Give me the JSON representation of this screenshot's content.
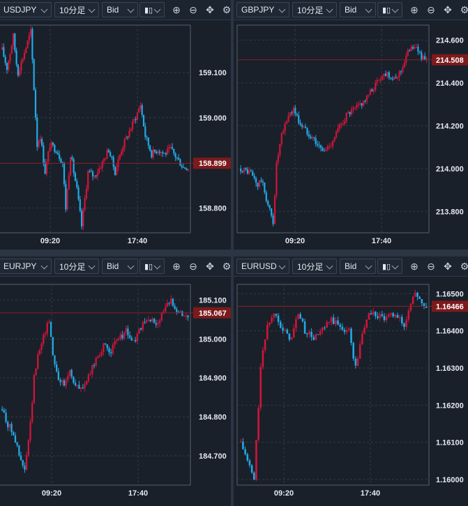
{
  "toolbar": {
    "timeframe": "10分足",
    "price_type": "Bid",
    "icon_names": [
      "candlestick-icon",
      "zoom-in-icon",
      "zoom-out-icon",
      "move-icon",
      "settings-icon"
    ]
  },
  "colors": {
    "up": "#d0153a",
    "down": "#23a9e6",
    "current_line": "#8f1f22",
    "current_bg": "#7d1a1c",
    "grid": "#2f3a48"
  },
  "chart_data": [
    {
      "type": "candlestick",
      "symbol": "USDJPY",
      "yticks": [
        159.1,
        159.0,
        158.8
      ],
      "ytick_labels": [
        "159.100",
        "159.000",
        "158.800"
      ],
      "current_price": 158.899,
      "current_label": "158.899",
      "xticks": [
        "09:20",
        "17:40"
      ],
      "ylim": [
        158.745,
        159.205
      ],
      "keypoints": [
        [
          0,
          159.15
        ],
        [
          3,
          159.11
        ],
        [
          7,
          159.18
        ],
        [
          9,
          159.12
        ],
        [
          10,
          159.1
        ],
        [
          18,
          159.19
        ],
        [
          22,
          158.94
        ],
        [
          24,
          158.96
        ],
        [
          27,
          158.88
        ],
        [
          30,
          158.94
        ],
        [
          34,
          158.93
        ],
        [
          38,
          158.9
        ],
        [
          40,
          158.8
        ],
        [
          43,
          158.92
        ],
        [
          47,
          158.84
        ],
        [
          50,
          158.76
        ],
        [
          54,
          158.88
        ],
        [
          58,
          158.87
        ],
        [
          63,
          158.9
        ],
        [
          67,
          158.93
        ],
        [
          71,
          158.88
        ],
        [
          75,
          158.93
        ],
        [
          80,
          158.97
        ],
        [
          85,
          159.01
        ],
        [
          87,
          159.03
        ],
        [
          90,
          158.96
        ],
        [
          94,
          158.92
        ],
        [
          98,
          158.93
        ],
        [
          102,
          158.92
        ],
        [
          106,
          158.93
        ],
        [
          110,
          158.91
        ],
        [
          114,
          158.89
        ]
      ]
    },
    {
      "type": "candlestick",
      "symbol": "GBPJPY",
      "yticks": [
        214.6,
        214.4,
        214.2,
        214.0,
        213.8
      ],
      "ytick_labels": [
        "214.600",
        "214.400",
        "214.200",
        "214.000",
        "213.800"
      ],
      "current_price": 214.508,
      "current_label": "214.508",
      "xticks": [
        "09:20",
        "17:40"
      ],
      "ylim": [
        213.7,
        214.67
      ],
      "keypoints": [
        [
          0,
          214.0
        ],
        [
          6,
          213.98
        ],
        [
          10,
          213.92
        ],
        [
          12,
          213.95
        ],
        [
          16,
          213.83
        ],
        [
          19,
          213.75
        ],
        [
          21,
          214.02
        ],
        [
          24,
          214.15
        ],
        [
          28,
          214.25
        ],
        [
          31,
          214.28
        ],
        [
          34,
          214.22
        ],
        [
          38,
          214.18
        ],
        [
          42,
          214.15
        ],
        [
          46,
          214.1
        ],
        [
          49,
          214.08
        ],
        [
          53,
          214.12
        ],
        [
          57,
          214.18
        ],
        [
          62,
          214.25
        ],
        [
          66,
          214.27
        ],
        [
          70,
          214.3
        ],
        [
          74,
          214.33
        ],
        [
          78,
          214.38
        ],
        [
          82,
          214.43
        ],
        [
          86,
          214.45
        ],
        [
          90,
          214.41
        ],
        [
          94,
          214.46
        ],
        [
          97,
          214.52
        ],
        [
          100,
          214.58
        ],
        [
          104,
          214.55
        ],
        [
          108,
          214.5
        ]
      ]
    },
    {
      "type": "candlestick",
      "symbol": "EURJPY",
      "yticks": [
        185.1,
        185.0,
        184.9,
        184.8,
        184.7
      ],
      "ytick_labels": [
        "185.100",
        "185.000",
        "184.900",
        "184.800",
        "184.700"
      ],
      "current_price": 185.067,
      "current_label": "185.067",
      "xticks": [
        "09:20",
        "17:40"
      ],
      "ylim": [
        184.625,
        185.14
      ],
      "keypoints": [
        [
          0,
          184.82
        ],
        [
          3,
          184.78
        ],
        [
          6,
          184.76
        ],
        [
          9,
          184.7
        ],
        [
          12,
          184.66
        ],
        [
          15,
          184.78
        ],
        [
          17,
          184.9
        ],
        [
          20,
          184.98
        ],
        [
          23,
          185.02
        ],
        [
          25,
          185.05
        ],
        [
          27,
          184.96
        ],
        [
          30,
          184.9
        ],
        [
          33,
          184.88
        ],
        [
          36,
          184.92
        ],
        [
          39,
          184.88
        ],
        [
          42,
          184.87
        ],
        [
          46,
          184.9
        ],
        [
          50,
          184.95
        ],
        [
          54,
          184.98
        ],
        [
          58,
          184.97
        ],
        [
          62,
          185.0
        ],
        [
          66,
          185.02
        ],
        [
          70,
          184.99
        ],
        [
          74,
          185.03
        ],
        [
          78,
          185.05
        ],
        [
          82,
          185.04
        ],
        [
          86,
          185.07
        ],
        [
          90,
          185.1
        ],
        [
          94,
          185.07
        ],
        [
          98,
          185.06
        ]
      ]
    },
    {
      "type": "candlestick",
      "symbol": "EURUSD",
      "yticks": [
        1.165,
        1.164,
        1.163,
        1.162,
        1.161,
        1.16
      ],
      "ytick_labels": [
        "1.16500",
        "1.16400",
        "1.16300",
        "1.16200",
        "1.16100",
        "1.16000"
      ],
      "current_price": 1.16466,
      "current_label": "1.16466",
      "xticks": [
        "09:20",
        "17:40"
      ],
      "ylim": [
        1.15985,
        1.16525
      ],
      "keypoints": [
        [
          0,
          1.161
        ],
        [
          3,
          1.1605
        ],
        [
          6,
          1.16
        ],
        [
          9,
          1.163
        ],
        [
          12,
          1.1642
        ],
        [
          16,
          1.1645
        ],
        [
          19,
          1.164
        ],
        [
          23,
          1.1638
        ],
        [
          26,
          1.1645
        ],
        [
          29,
          1.164
        ],
        [
          33,
          1.1638
        ],
        [
          37,
          1.164
        ],
        [
          41,
          1.1643
        ],
        [
          45,
          1.1641
        ],
        [
          49,
          1.164
        ],
        [
          52,
          1.163
        ],
        [
          55,
          1.1639
        ],
        [
          58,
          1.1645
        ],
        [
          62,
          1.1644
        ],
        [
          66,
          1.1643
        ],
        [
          70,
          1.1645
        ],
        [
          74,
          1.1641
        ],
        [
          77,
          1.1648
        ],
        [
          80,
          1.165
        ],
        [
          83,
          1.1646
        ]
      ]
    }
  ]
}
